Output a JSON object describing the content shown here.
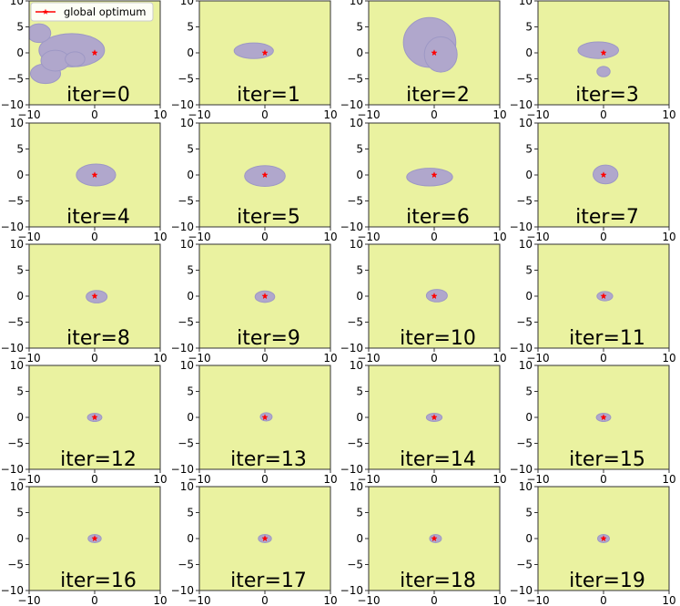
{
  "colors": {
    "background_region": "#eaf2a0",
    "feasible_region": "#b0a7cc",
    "region_edge": "#9d98c5",
    "optimum_marker": "#ff0000"
  },
  "legend": {
    "label": "global optimum",
    "location": "upper-left of first panel"
  },
  "chart_data": {
    "type": "small-multiples-region",
    "grid": {
      "rows": 5,
      "cols": 4
    },
    "xlim": [
      -10,
      10
    ],
    "ylim": [
      -10,
      10
    ],
    "xticks": [
      -10,
      0,
      10
    ],
    "yticks": [
      10,
      5,
      0,
      -5,
      -10
    ],
    "global_optimum": {
      "x": 0,
      "y": 0
    },
    "panels": [
      {
        "label": "iter=0",
        "blobs": [
          {
            "cx": -3.5,
            "cy": 0.5,
            "rx": 5.0,
            "ry": 3.2
          },
          {
            "cx": -8.5,
            "cy": 3.8,
            "rx": 1.8,
            "ry": 1.8
          },
          {
            "cx": -7.5,
            "cy": -4.0,
            "rx": 2.3,
            "ry": 1.9
          },
          {
            "cx": -6.0,
            "cy": -1.5,
            "rx": 2.2,
            "ry": 2.0
          },
          {
            "cx": -3.0,
            "cy": -1.2,
            "rx": 1.5,
            "ry": 1.4
          }
        ]
      },
      {
        "label": "iter=1",
        "blobs": [
          {
            "cx": -1.7,
            "cy": 0.4,
            "rx": 3.0,
            "ry": 1.5
          }
        ]
      },
      {
        "label": "iter=2",
        "blobs": [
          {
            "cx": -0.7,
            "cy": 2.0,
            "rx": 4.0,
            "ry": 4.8
          },
          {
            "cx": 1.0,
            "cy": -0.3,
            "rx": 2.5,
            "ry": 3.4
          }
        ]
      },
      {
        "label": "iter=3",
        "blobs": [
          {
            "cx": -0.8,
            "cy": 0.5,
            "rx": 3.1,
            "ry": 1.6
          },
          {
            "cx": 0.0,
            "cy": -3.6,
            "rx": 1.0,
            "ry": 1.0
          }
        ]
      },
      {
        "label": "iter=4",
        "blobs": [
          {
            "cx": 0.2,
            "cy": 0.0,
            "rx": 3.0,
            "ry": 2.1
          }
        ]
      },
      {
        "label": "iter=5",
        "blobs": [
          {
            "cx": 0.0,
            "cy": -0.2,
            "rx": 3.1,
            "ry": 2.0
          }
        ]
      },
      {
        "label": "iter=6",
        "blobs": [
          {
            "cx": -0.7,
            "cy": -0.4,
            "rx": 3.5,
            "ry": 1.7
          }
        ]
      },
      {
        "label": "iter=7",
        "blobs": [
          {
            "cx": 0.3,
            "cy": 0.1,
            "rx": 1.9,
            "ry": 1.8
          }
        ]
      },
      {
        "label": "iter=8",
        "blobs": [
          {
            "cx": 0.3,
            "cy": -0.1,
            "rx": 1.6,
            "ry": 1.2
          }
        ]
      },
      {
        "label": "iter=9",
        "blobs": [
          {
            "cx": 0.0,
            "cy": -0.1,
            "rx": 1.5,
            "ry": 1.1
          }
        ]
      },
      {
        "label": "iter=10",
        "blobs": [
          {
            "cx": 0.4,
            "cy": 0.1,
            "rx": 1.6,
            "ry": 1.2
          }
        ]
      },
      {
        "label": "iter=11",
        "blobs": [
          {
            "cx": 0.2,
            "cy": 0.0,
            "rx": 1.2,
            "ry": 0.9
          }
        ]
      },
      {
        "label": "iter=12",
        "blobs": [
          {
            "cx": 0.0,
            "cy": 0.0,
            "rx": 1.1,
            "ry": 0.8
          }
        ]
      },
      {
        "label": "iter=13",
        "blobs": [
          {
            "cx": 0.2,
            "cy": 0.1,
            "rx": 0.9,
            "ry": 0.8
          }
        ]
      },
      {
        "label": "iter=14",
        "blobs": [
          {
            "cx": 0.0,
            "cy": 0.0,
            "rx": 1.2,
            "ry": 0.8
          }
        ]
      },
      {
        "label": "iter=15",
        "blobs": [
          {
            "cx": 0.0,
            "cy": 0.0,
            "rx": 1.1,
            "ry": 0.8
          }
        ]
      },
      {
        "label": "iter=16",
        "blobs": [
          {
            "cx": 0.0,
            "cy": 0.0,
            "rx": 1.0,
            "ry": 0.8
          }
        ]
      },
      {
        "label": "iter=17",
        "blobs": [
          {
            "cx": 0.0,
            "cy": 0.0,
            "rx": 1.0,
            "ry": 0.8
          }
        ]
      },
      {
        "label": "iter=18",
        "blobs": [
          {
            "cx": 0.2,
            "cy": 0.0,
            "rx": 0.9,
            "ry": 0.8
          }
        ]
      },
      {
        "label": "iter=19",
        "blobs": [
          {
            "cx": 0.0,
            "cy": 0.0,
            "rx": 0.9,
            "ry": 0.8
          }
        ]
      }
    ]
  }
}
